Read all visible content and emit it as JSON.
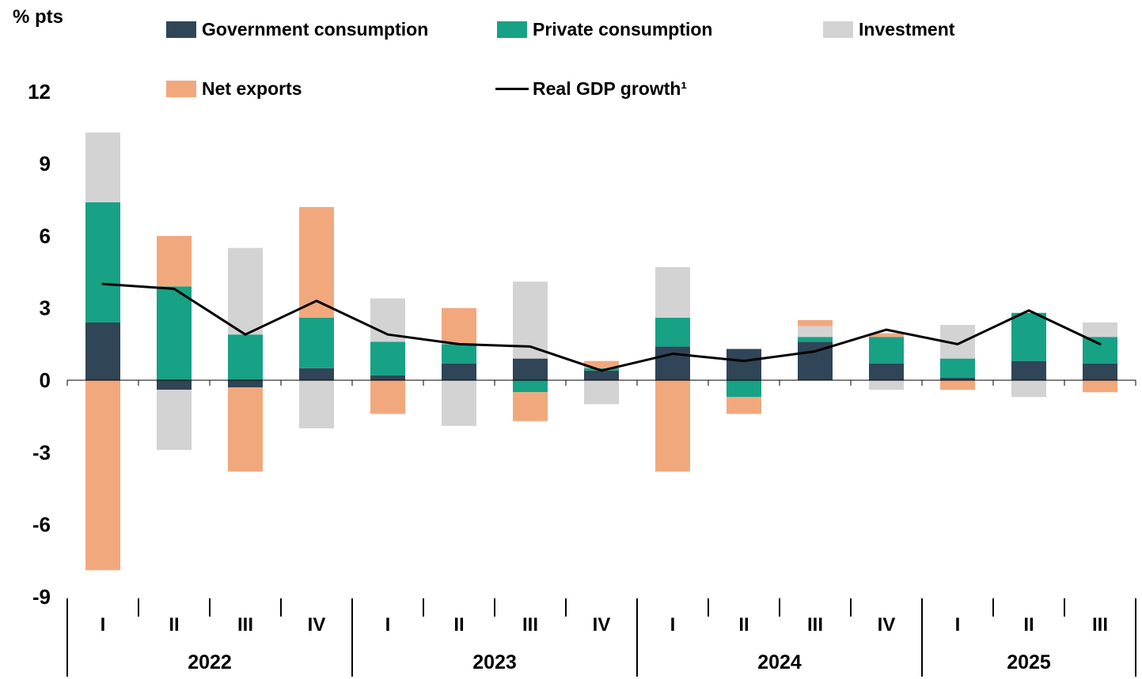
{
  "ylabel": "% pts",
  "chart_data": {
    "type": "bar",
    "subtype": "stacked-bar-with-line",
    "title": "",
    "xlabel": "",
    "ylabel": "% pts",
    "ylim": [
      -9,
      12
    ],
    "yticks": [
      12,
      9,
      6,
      3,
      0,
      -3,
      -6,
      -9
    ],
    "grid": false,
    "legend_position": "top",
    "categories": [
      "I",
      "II",
      "III",
      "IV",
      "I",
      "II",
      "III",
      "IV",
      "I",
      "II",
      "III",
      "IV",
      "I",
      "II",
      "III"
    ],
    "year_groups": [
      {
        "label": "2022",
        "quarters": 4
      },
      {
        "label": "2023",
        "quarters": 4
      },
      {
        "label": "2024",
        "quarters": 4
      },
      {
        "label": "2025",
        "quarters": 3
      }
    ],
    "series": [
      {
        "name": "Government consumption",
        "type": "bar",
        "color": "#304557",
        "values": [
          2.4,
          -0.4,
          -0.3,
          0.5,
          0.2,
          0.7,
          0.9,
          0.4,
          1.4,
          1.3,
          1.6,
          0.7,
          0.1,
          0.8,
          0.7
        ]
      },
      {
        "name": "Private consumption",
        "type": "bar",
        "color": "#17a185",
        "values": [
          5.0,
          3.9,
          1.9,
          2.1,
          1.4,
          0.8,
          -0.5,
          0.1,
          1.2,
          -0.7,
          0.2,
          1.1,
          0.8,
          2.0,
          1.1
        ]
      },
      {
        "name": "Investment",
        "type": "bar",
        "color": "#d3d3d3",
        "values": [
          2.9,
          -2.5,
          3.6,
          -2.0,
          1.8,
          -1.9,
          3.2,
          -1.0,
          2.1,
          0.0,
          0.45,
          -0.4,
          1.4,
          -0.7,
          0.6
        ]
      },
      {
        "name": "Net exports",
        "type": "bar",
        "color": "#f2a87d",
        "values": [
          -7.9,
          2.1,
          -3.5,
          4.6,
          -1.4,
          1.5,
          -1.2,
          0.3,
          -3.8,
          -0.7,
          0.25,
          0.15,
          -0.4,
          0.0,
          -0.5
        ]
      },
      {
        "name": "Real GDP growth¹",
        "type": "line",
        "color": "#000000",
        "values": [
          4.0,
          3.8,
          1.9,
          3.3,
          1.9,
          1.5,
          1.4,
          0.4,
          1.1,
          0.8,
          1.2,
          2.1,
          1.5,
          2.9,
          1.5
        ]
      }
    ]
  }
}
